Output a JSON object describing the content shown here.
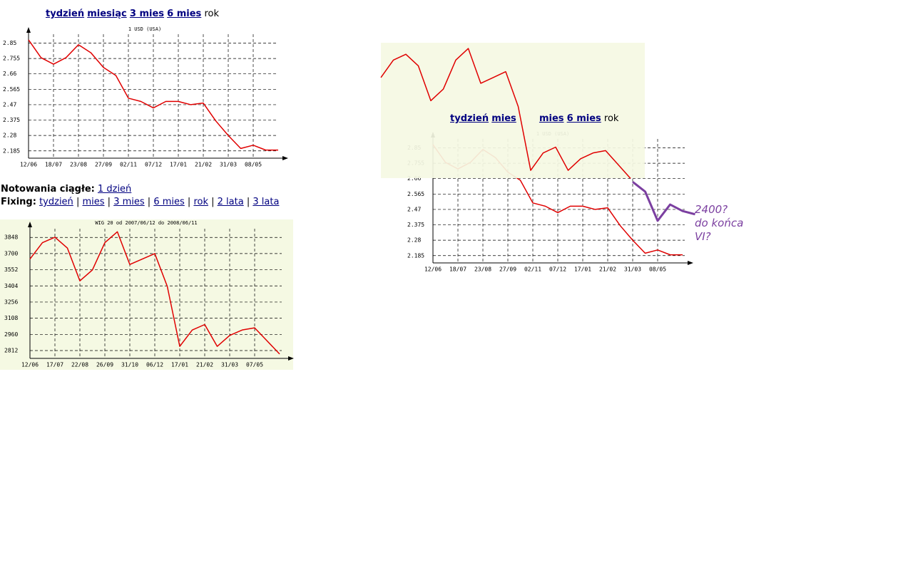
{
  "top_nav": [
    "tydzień",
    "miesiąc",
    "3 mies",
    "6 mies",
    "rok"
  ],
  "notowania": {
    "label": "Notowania ciągłe:",
    "link": "1 dzień"
  },
  "fixing": {
    "label": "Fixing:",
    "separator": "|",
    "links": [
      "tydzień",
      "mies",
      "3 mies",
      "6 mies",
      "rok",
      "2 lata",
      "3 lata"
    ]
  },
  "right_nav": [
    "tydzień",
    "mies",
    "mies",
    "6 mies",
    "rok"
  ],
  "annotation": [
    "2400?",
    "do końca",
    "VI?"
  ],
  "chart_data": [
    {
      "type": "line",
      "title": "1 USD (USA)",
      "color": "#e00000",
      "categories": [
        "12/06",
        null,
        "18/07",
        null,
        "23/08",
        null,
        "27/09",
        null,
        "02/11",
        null,
        "07/12",
        null,
        "17/01",
        null,
        "21/02",
        null,
        "31/03",
        null,
        "08/05",
        null,
        null
      ],
      "values": [
        2.87,
        2.76,
        2.72,
        2.76,
        2.84,
        2.79,
        2.7,
        2.65,
        2.51,
        2.49,
        2.45,
        2.49,
        2.49,
        2.47,
        2.48,
        2.37,
        2.28,
        2.2,
        2.22,
        2.19,
        2.19
      ],
      "ylim": [
        2.14,
        2.94
      ],
      "yticks": [
        2.185,
        2.28,
        2.375,
        2.47,
        2.565,
        2.66,
        2.755,
        2.85
      ],
      "grid": true
    },
    {
      "type": "line",
      "title": "WIG 20 od 2007/06/12 do 2008/06/11",
      "color": "#e00000",
      "categories": [
        "12/06",
        null,
        "17/07",
        null,
        "22/08",
        null,
        "26/09",
        null,
        "31/10",
        null,
        "06/12",
        null,
        "17/01",
        null,
        "21/02",
        null,
        "31/03",
        null,
        "07/05",
        null,
        null
      ],
      "values": [
        3650,
        3800,
        3850,
        3750,
        3450,
        3550,
        3800,
        3900,
        3600,
        3650,
        3700,
        3400,
        2850,
        3000,
        3050,
        2850,
        2950,
        3000,
        3020,
        2900,
        2780
      ],
      "ylim": [
        2740,
        3980
      ],
      "yticks": [
        2812,
        2960,
        3108,
        3256,
        3404,
        3552,
        3700,
        3848
      ],
      "grid": true
    },
    {
      "type": "line",
      "title": "1 USD (USA)",
      "categories": [
        "12/06",
        null,
        "18/07",
        null,
        "23/08",
        null,
        "27/09",
        null,
        "02/11",
        null,
        "07/12",
        null,
        "17/01",
        null,
        "21/02",
        null,
        "31/03",
        null,
        "08/05",
        null,
        null,
        null
      ],
      "series": [
        {
          "color": "#e00000",
          "values": [
            2.87,
            2.76,
            2.72,
            2.76,
            2.84,
            2.79,
            2.7,
            2.65,
            2.51,
            2.49,
            2.45,
            2.49,
            2.49,
            2.47,
            2.48,
            2.37,
            2.28,
            2.2,
            2.22,
            2.19,
            2.19,
            null
          ]
        },
        {
          "color": "#7b3fa0",
          "values": [
            null,
            null,
            null,
            null,
            null,
            null,
            null,
            null,
            null,
            null,
            null,
            null,
            null,
            null,
            null,
            null,
            2.64,
            2.58,
            2.4,
            2.5,
            2.46,
            2.44
          ]
        }
      ],
      "ylim": [
        2.14,
        2.94
      ],
      "yticks": [
        2.185,
        2.28,
        2.375,
        2.47,
        2.565,
        2.66,
        2.755,
        2.85
      ],
      "grid": true
    },
    {
      "type": "line",
      "color": "#e00000",
      "values": [
        3650,
        3800,
        3850,
        3750,
        3450,
        3550,
        3800,
        3900,
        3600,
        3650,
        3700,
        3400,
        2850,
        3000,
        3050,
        2850,
        2950,
        3000,
        3020,
        2900,
        2780
      ],
      "ylim": [
        2740,
        3980
      ]
    }
  ]
}
